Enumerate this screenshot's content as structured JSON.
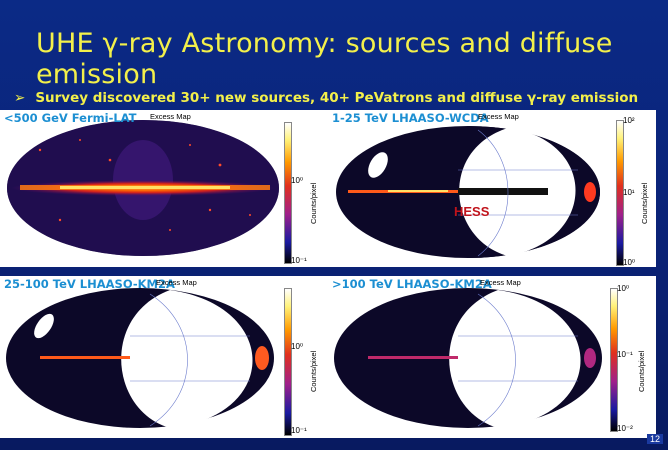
{
  "title": "UHE γ-ray Astronomy: sources and diffuse emission",
  "bullet": "Survey discovered 30+ new sources,  40+ PeVatrons and diffuse γ-ray emission",
  "panels": [
    {
      "label": "<500 GeV  Fermi-LAT",
      "map_title": "Excess Map",
      "cbar_top": "",
      "cbar_mid": "10⁰",
      "cbar_bot": "10⁻¹",
      "unit": "Counts/pixel"
    },
    {
      "label": "1-25 TeV LHAASO-WCDA",
      "map_title": "Excess Map",
      "cbar_top": "10²",
      "cbar_mid": "10¹",
      "cbar_bot": "10⁰",
      "unit": "Counts/pixel",
      "overlay": "HESS"
    },
    {
      "label": "25-100 TeV LHAASO-KM2A",
      "map_title": "Excess Map",
      "cbar_top": "",
      "cbar_mid": "10⁰",
      "cbar_bot": "10⁻¹",
      "unit": "Counts/pixel"
    },
    {
      "label": ">100 TeV LHAASO-KM2A",
      "map_title": "Excess Map",
      "cbar_top": "10⁰",
      "cbar_mid": "10⁻¹",
      "cbar_bot": "10⁻²",
      "unit": "Counts/pixel"
    }
  ],
  "page_number": "12"
}
